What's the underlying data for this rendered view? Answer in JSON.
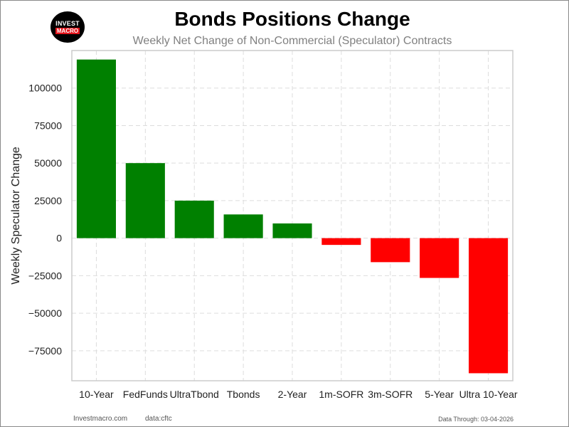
{
  "header": {
    "title": "Bonds Positions Change",
    "subtitle": "Weekly Net Change of Non-Commercial (Speculator) Contracts"
  },
  "logo": {
    "line1": "INVEST",
    "line2": "MACRO"
  },
  "footer": {
    "site": "Investmacro.com",
    "source": "data:cftc",
    "through": "Data Through: 03-04-2026"
  },
  "colors": {
    "positive": "#008000",
    "negative": "#ff0000",
    "grid": "#dddddd",
    "axes": "#cccccc"
  },
  "chart_data": {
    "type": "bar",
    "title": "Bonds Positions Change",
    "subtitle": "Weekly Net Change of Non-Commercial (Speculator) Contracts",
    "xlabel": "",
    "ylabel": "Weekly Speculator Change",
    "categories": [
      "10-Year",
      "FedFunds",
      "UltraTbond",
      "Tbonds",
      "2-Year",
      "1m-SOFR",
      "3m-SOFR",
      "5-Year",
      "Ultra 10-Year"
    ],
    "values": [
      119000,
      50000,
      25000,
      15800,
      9800,
      -4500,
      -16000,
      -26500,
      -90000
    ],
    "yticks": [
      100000,
      75000,
      50000,
      25000,
      0,
      -25000,
      -50000,
      -75000
    ],
    "ytick_labels": [
      "100000",
      "75000",
      "50000",
      "25000",
      "0",
      "−25000",
      "−50000",
      "−75000"
    ],
    "ylim": [
      -95000,
      125000
    ],
    "grid": true,
    "bar_colors": [
      "#008000",
      "#008000",
      "#008000",
      "#008000",
      "#008000",
      "#ff0000",
      "#ff0000",
      "#ff0000",
      "#ff0000"
    ]
  }
}
